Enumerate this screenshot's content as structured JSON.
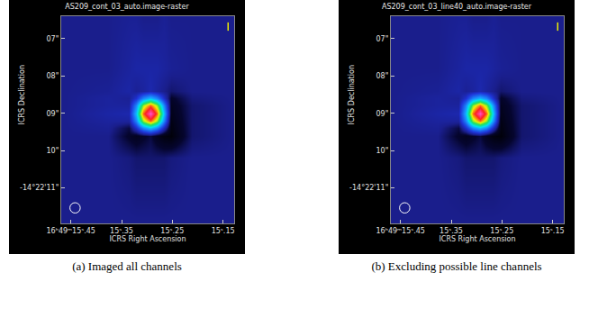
{
  "chart_data": [
    {
      "type": "heatmap",
      "title": "AS209_cont_03_auto.image-raster",
      "caption": "(a) Imaged all channels",
      "x_label": "ICRS Right Ascension",
      "y_label": "ICRS Declination",
      "xlim": [
        15.469,
        15.128
      ],
      "ylim": [
        11.95,
        6.4
      ],
      "xticks": [
        {
          "value": 15.45,
          "label": "16ʰ49ᵐ15ˢ.45"
        },
        {
          "value": 15.35,
          "label": "15ˢ.35"
        },
        {
          "value": 15.25,
          "label": "15ˢ.25"
        },
        {
          "value": 15.15,
          "label": "15ˢ.15"
        }
      ],
      "yticks": [
        {
          "value": 7,
          "label": "07\""
        },
        {
          "value": 8,
          "label": "08\""
        },
        {
          "value": 9,
          "label": "09\""
        },
        {
          "value": 10,
          "label": "10\""
        },
        {
          "value": 11,
          "label": "-14°22'11\""
        }
      ],
      "zlim": [
        -0.1,
        1
      ],
      "x": [
        15.466,
        15.377,
        15.335,
        15.322,
        15.308,
        15.294,
        15.28,
        15.266,
        15.253,
        15.211,
        15.128
      ],
      "y": [
        6.5,
        7.8,
        8.4,
        8.6,
        8.8,
        9.0,
        9.2,
        9.4,
        9.6,
        10.2,
        11.9
      ],
      "z": [
        [
          0.05,
          0.05,
          0.06,
          0.06,
          0.05,
          0.05,
          0.05,
          0.06,
          0.05,
          0.05,
          0.05
        ],
        [
          0.05,
          0.05,
          0.07,
          0.08,
          0.08,
          0.08,
          0.08,
          0.07,
          0.06,
          0.05,
          0.05
        ],
        [
          0.05,
          0.06,
          0.08,
          0.06,
          0.07,
          0.09,
          0.07,
          0.05,
          0.03,
          0.05,
          0.05
        ],
        [
          0.05,
          0.07,
          0.06,
          0.13,
          0.28,
          0.36,
          0.28,
          0.12,
          -0.02,
          0.04,
          0.05
        ],
        [
          0.05,
          0.07,
          0.07,
          0.28,
          0.62,
          0.78,
          0.62,
          0.28,
          -0.04,
          0.03,
          0.05
        ],
        [
          0.05,
          0.08,
          0.09,
          0.36,
          0.78,
          1.0,
          0.78,
          0.36,
          -0.05,
          0.03,
          0.05
        ],
        [
          0.05,
          0.07,
          0.07,
          0.28,
          0.62,
          0.78,
          0.62,
          0.28,
          -0.06,
          0.03,
          0.05
        ],
        [
          0.05,
          0.06,
          0.0,
          0.12,
          0.28,
          0.36,
          0.28,
          0.1,
          -0.07,
          0.03,
          0.05
        ],
        [
          0.05,
          0.05,
          -0.02,
          -0.04,
          -0.02,
          0.0,
          -0.04,
          -0.07,
          -0.08,
          0.03,
          0.05
        ],
        [
          0.05,
          0.05,
          0.04,
          0.03,
          0.03,
          0.03,
          0.03,
          0.03,
          0.04,
          0.05,
          0.05
        ],
        [
          0.05,
          0.05,
          0.05,
          0.05,
          0.05,
          0.05,
          0.05,
          0.05,
          0.05,
          0.05,
          0.05
        ]
      ]
    },
    {
      "type": "heatmap",
      "title": "AS209_cont_03_line40_auto.image-raster",
      "caption": "(b) Excluding possible line channels",
      "x_label": "ICRS Right Ascension",
      "y_label": "ICRS Declination",
      "xlim": [
        15.469,
        15.128
      ],
      "ylim": [
        11.95,
        6.4
      ],
      "xticks": [
        {
          "value": 15.45,
          "label": "16ʰ49ᵐ15ˢ.45"
        },
        {
          "value": 15.35,
          "label": "15ˢ.35"
        },
        {
          "value": 15.25,
          "label": "15ˢ.25"
        },
        {
          "value": 15.15,
          "label": "15ˢ.15"
        }
      ],
      "yticks": [
        {
          "value": 7,
          "label": "07\""
        },
        {
          "value": 8,
          "label": "08\""
        },
        {
          "value": 9,
          "label": "09\""
        },
        {
          "value": 10,
          "label": "10\""
        },
        {
          "value": 11,
          "label": "-14°22'11\""
        }
      ],
      "zlim": [
        -0.1,
        1
      ],
      "x": [
        15.466,
        15.377,
        15.335,
        15.322,
        15.308,
        15.294,
        15.28,
        15.266,
        15.253,
        15.211,
        15.128
      ],
      "y": [
        6.5,
        7.8,
        8.4,
        8.6,
        8.8,
        9.0,
        9.2,
        9.4,
        9.6,
        10.2,
        11.9
      ],
      "z": [
        [
          0.05,
          0.05,
          0.06,
          0.06,
          0.05,
          0.05,
          0.05,
          0.06,
          0.05,
          0.05,
          0.05
        ],
        [
          0.05,
          0.05,
          0.07,
          0.08,
          0.08,
          0.08,
          0.08,
          0.07,
          0.06,
          0.05,
          0.05
        ],
        [
          0.05,
          0.06,
          0.08,
          0.06,
          0.07,
          0.09,
          0.07,
          0.05,
          0.03,
          0.05,
          0.05
        ],
        [
          0.05,
          0.07,
          0.06,
          0.13,
          0.28,
          0.35,
          0.28,
          0.12,
          -0.02,
          0.04,
          0.05
        ],
        [
          0.05,
          0.07,
          0.07,
          0.28,
          0.61,
          0.77,
          0.61,
          0.28,
          -0.04,
          0.03,
          0.05
        ],
        [
          0.05,
          0.08,
          0.09,
          0.35,
          0.77,
          0.99,
          0.77,
          0.35,
          -0.05,
          0.03,
          0.05
        ],
        [
          0.05,
          0.07,
          0.07,
          0.28,
          0.61,
          0.77,
          0.61,
          0.28,
          -0.06,
          0.03,
          0.05
        ],
        [
          0.05,
          0.06,
          0.0,
          0.12,
          0.28,
          0.35,
          0.28,
          0.1,
          -0.07,
          0.03,
          0.05
        ],
        [
          0.05,
          0.05,
          -0.02,
          -0.04,
          -0.02,
          0.0,
          -0.04,
          -0.07,
          -0.08,
          0.03,
          0.05
        ],
        [
          0.05,
          0.05,
          0.04,
          0.03,
          0.03,
          0.03,
          0.03,
          0.03,
          0.04,
          0.05,
          0.05
        ],
        [
          0.05,
          0.05,
          0.05,
          0.05,
          0.05,
          0.05,
          0.05,
          0.05,
          0.05,
          0.05,
          0.05
        ]
      ]
    }
  ]
}
